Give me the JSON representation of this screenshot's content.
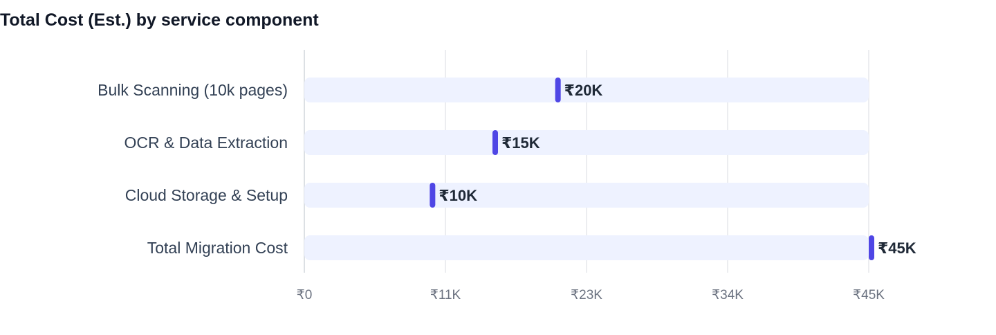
{
  "chart_data": {
    "type": "bar",
    "title": "Total Cost (Est.) by service component",
    "xlabel": "",
    "ylabel": "",
    "categories": [
      "Bulk Scanning (10k pages)",
      "OCR & Data Extraction",
      "Cloud Storage & Setup",
      "Total Migration Cost"
    ],
    "values": [
      20000,
      15000,
      10000,
      45000
    ],
    "value_labels": [
      "₹20K",
      "₹15K",
      "₹10K",
      "₹45K"
    ],
    "xlim": [
      0,
      45000
    ],
    "ticks": [
      0,
      11250,
      22500,
      33750,
      45000
    ],
    "tick_labels": [
      "₹0",
      "₹11K",
      "₹23K",
      "₹34K",
      "₹45K"
    ],
    "grid": true,
    "orientation": "horizontal",
    "colors": {
      "marker": "#4f46e5",
      "track": "#eef2ff",
      "grid": "#e5e7eb",
      "axis": "#d1d5db"
    }
  }
}
